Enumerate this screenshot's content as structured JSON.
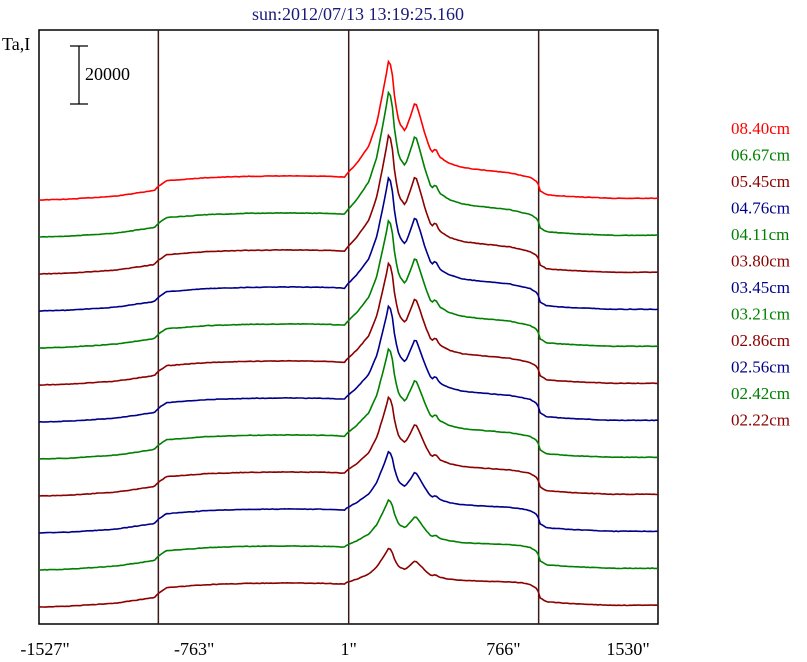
{
  "chart_data": {
    "type": "line",
    "title": "sun:2012/07/13 13:19:25.160",
    "ylabel": "Ta,I",
    "scale_bar_label": "20000",
    "scale_bar_value": 20000,
    "x_tick_labels": [
      "-1527\"",
      "-763\"",
      "1\"",
      "766\"",
      "1530\""
    ],
    "x_tick_values": [
      -1527,
      -763,
      1,
      766,
      1530
    ],
    "xlim": [
      -1530,
      1530
    ],
    "vertical_lines": [
      -940,
      1,
      940
    ],
    "grid": false,
    "legend_position": "right",
    "profile_x": [
      -1530,
      -1380,
      -1150,
      -960,
      -940,
      -900,
      -700,
      -500,
      -300,
      -100,
      -20,
      0,
      40,
      100,
      140,
      170,
      190,
      200,
      215,
      230,
      250,
      280,
      310,
      330,
      350,
      380,
      410,
      430,
      450,
      500,
      560,
      620,
      700,
      800,
      900,
      935,
      945,
      980,
      1100,
      1300,
      1530
    ],
    "profile_shape": [
      0,
      0.2,
      0.9,
      2.2,
      3.2,
      4.5,
      5.2,
      5.5,
      5.6,
      5.5,
      5.3,
      6.5,
      8.5,
      12.5,
      18,
      25,
      30,
      33,
      30,
      23,
      18,
      16,
      20,
      23,
      20,
      15,
      11,
      12,
      10,
      8.5,
      7.6,
      7.2,
      6.8,
      6.3,
      5.2,
      4.2,
      2.2,
      1.2,
      0.8,
      0.4,
      0.4
    ],
    "series": [
      {
        "name": "08.40cm",
        "color": "#ff0000",
        "base": 0,
        "peak_scale": 1.0
      },
      {
        "name": "06.67cm",
        "color": "#008000",
        "base": 0,
        "peak_scale": 1.05
      },
      {
        "name": "05.45cm",
        "color": "#8b0000",
        "base": 0,
        "peak_scale": 1.0
      },
      {
        "name": "04.76cm",
        "color": "#00008b",
        "base": 0,
        "peak_scale": 0.95
      },
      {
        "name": "04.11cm",
        "color": "#008000",
        "base": 0,
        "peak_scale": 0.9
      },
      {
        "name": "03.80cm",
        "color": "#8b0000",
        "base": 0,
        "peak_scale": 0.85
      },
      {
        "name": "03.45cm",
        "color": "#00008b",
        "base": 0,
        "peak_scale": 0.8
      },
      {
        "name": "03.21cm",
        "color": "#008000",
        "base": 0,
        "peak_scale": 0.75
      },
      {
        "name": "02.86cm",
        "color": "#8b0000",
        "base": 0,
        "peak_scale": 0.65
      },
      {
        "name": "02.56cm",
        "color": "#00008b",
        "base": 0,
        "peak_scale": 0.5
      },
      {
        "name": "02.42cm",
        "color": "#008000",
        "base": 0,
        "peak_scale": 0.4
      },
      {
        "name": "02.22cm",
        "color": "#8b0000",
        "base": 0,
        "peak_scale": 0.3
      }
    ]
  }
}
